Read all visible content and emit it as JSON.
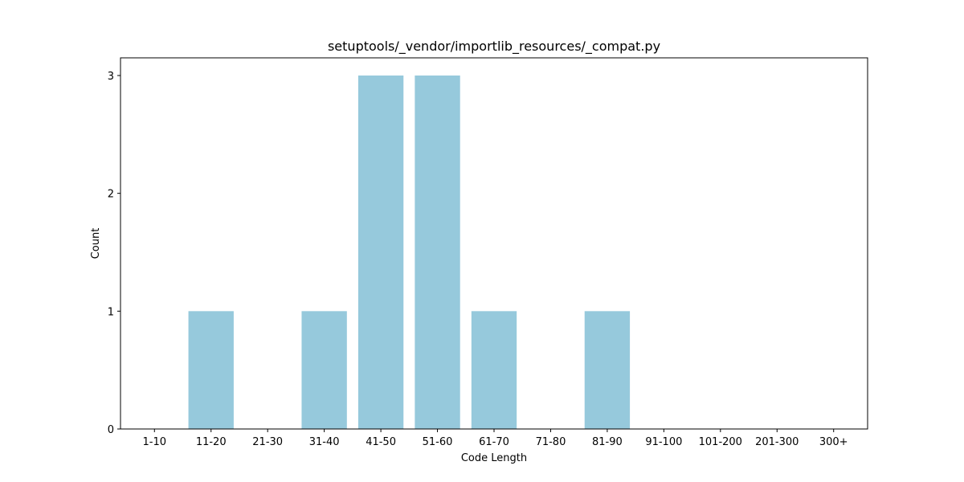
{
  "chart_data": {
    "type": "bar",
    "title": "setuptools/_vendor/importlib_resources/_compat.py",
    "xlabel": "Code Length",
    "ylabel": "Count",
    "categories": [
      "1-10",
      "11-20",
      "21-30",
      "31-40",
      "41-50",
      "51-60",
      "61-70",
      "71-80",
      "81-90",
      "91-100",
      "101-200",
      "201-300",
      "300+"
    ],
    "values": [
      0,
      1,
      0,
      1,
      3,
      3,
      1,
      0,
      1,
      0,
      0,
      0,
      0
    ],
    "ylim": [
      0,
      3.15
    ],
    "yticks": [
      "0",
      "1",
      "2",
      "3"
    ],
    "bar_color": "#96c9dc",
    "grid": false,
    "legend": "none"
  }
}
